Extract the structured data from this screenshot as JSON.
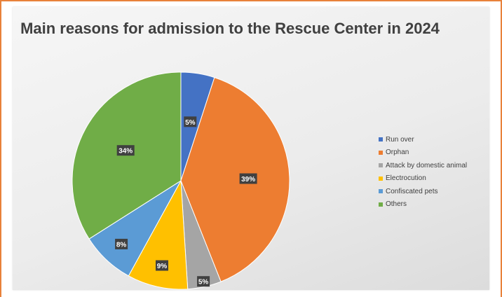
{
  "chart_data": {
    "type": "pie",
    "title": "Main reasons for admission to the Rescue Center in 2024",
    "categories": [
      "Run over",
      "Orphan",
      "Attack by domestic animal",
      "Electrocution",
      "Confiscated pets",
      "Others"
    ],
    "values": [
      5,
      39,
      5,
      9,
      8,
      34
    ],
    "data_labels": [
      "5%",
      "39%",
      "5%",
      "9%",
      "8%",
      "34%"
    ],
    "colors": [
      "#4472c4",
      "#ed7d31",
      "#a5a5a5",
      "#ffc000",
      "#5b9bd5",
      "#70ad47"
    ],
    "legend_position": "right",
    "start_angle": "12 o'clock, clockwise"
  }
}
